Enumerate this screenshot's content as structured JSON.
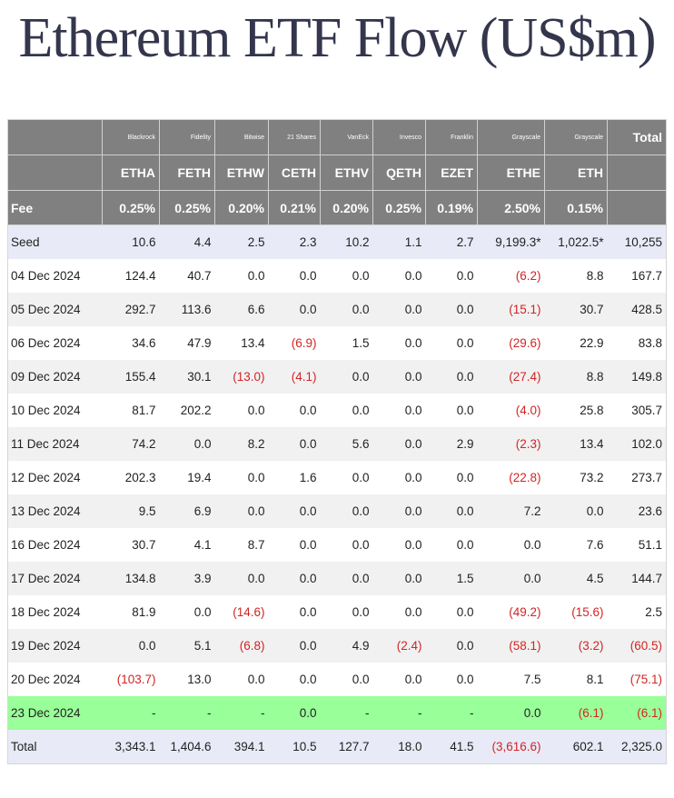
{
  "title": "Ethereum ETF Flow (US$m)",
  "header": {
    "issuers": [
      "",
      "Blackrock",
      "Fidelity",
      "Bitwise",
      "21 Shares",
      "VanEck",
      "Invesco",
      "Franklin",
      "Grayscale",
      "Grayscale",
      "Total"
    ],
    "tickers": [
      "",
      "ETHA",
      "FETH",
      "ETHW",
      "CETH",
      "ETHV",
      "QETH",
      "EZET",
      "ETHE",
      "ETH",
      ""
    ],
    "fees": [
      "Fee",
      "0.25%",
      "0.25%",
      "0.20%",
      "0.21%",
      "0.20%",
      "0.25%",
      "0.19%",
      "2.50%",
      "0.15%",
      ""
    ]
  },
  "rows": [
    {
      "style": "seed",
      "cells": [
        "Seed",
        "10.6",
        "4.4",
        "2.5",
        "2.3",
        "10.2",
        "1.1",
        "2.7",
        "9,199.3*",
        "1,022.5*",
        "10,255"
      ]
    },
    {
      "style": "odd",
      "cells": [
        "04 Dec 2024",
        "124.4",
        "40.7",
        "0.0",
        "0.0",
        "0.0",
        "0.0",
        "0.0",
        "(6.2)",
        "8.8",
        "167.7"
      ]
    },
    {
      "style": "even",
      "cells": [
        "05 Dec 2024",
        "292.7",
        "113.6",
        "6.6",
        "0.0",
        "0.0",
        "0.0",
        "0.0",
        "(15.1)",
        "30.7",
        "428.5"
      ]
    },
    {
      "style": "odd",
      "cells": [
        "06 Dec 2024",
        "34.6",
        "47.9",
        "13.4",
        "(6.9)",
        "1.5",
        "0.0",
        "0.0",
        "(29.6)",
        "22.9",
        "83.8"
      ]
    },
    {
      "style": "even",
      "cells": [
        "09 Dec 2024",
        "155.4",
        "30.1",
        "(13.0)",
        "(4.1)",
        "0.0",
        "0.0",
        "0.0",
        "(27.4)",
        "8.8",
        "149.8"
      ]
    },
    {
      "style": "odd",
      "cells": [
        "10 Dec 2024",
        "81.7",
        "202.2",
        "0.0",
        "0.0",
        "0.0",
        "0.0",
        "0.0",
        "(4.0)",
        "25.8",
        "305.7"
      ]
    },
    {
      "style": "even",
      "cells": [
        "11 Dec 2024",
        "74.2",
        "0.0",
        "8.2",
        "0.0",
        "5.6",
        "0.0",
        "2.9",
        "(2.3)",
        "13.4",
        "102.0"
      ]
    },
    {
      "style": "odd",
      "cells": [
        "12 Dec 2024",
        "202.3",
        "19.4",
        "0.0",
        "1.6",
        "0.0",
        "0.0",
        "0.0",
        "(22.8)",
        "73.2",
        "273.7"
      ]
    },
    {
      "style": "even",
      "cells": [
        "13 Dec 2024",
        "9.5",
        "6.9",
        "0.0",
        "0.0",
        "0.0",
        "0.0",
        "0.0",
        "7.2",
        "0.0",
        "23.6"
      ]
    },
    {
      "style": "odd",
      "cells": [
        "16 Dec 2024",
        "30.7",
        "4.1",
        "8.7",
        "0.0",
        "0.0",
        "0.0",
        "0.0",
        "0.0",
        "7.6",
        "51.1"
      ]
    },
    {
      "style": "even",
      "cells": [
        "17 Dec 2024",
        "134.8",
        "3.9",
        "0.0",
        "0.0",
        "0.0",
        "0.0",
        "1.5",
        "0.0",
        "4.5",
        "144.7"
      ]
    },
    {
      "style": "odd",
      "cells": [
        "18 Dec 2024",
        "81.9",
        "0.0",
        "(14.6)",
        "0.0",
        "0.0",
        "0.0",
        "0.0",
        "(49.2)",
        "(15.6)",
        "2.5"
      ]
    },
    {
      "style": "even",
      "cells": [
        "19 Dec 2024",
        "0.0",
        "5.1",
        "(6.8)",
        "0.0",
        "4.9",
        "(2.4)",
        "0.0",
        "(58.1)",
        "(3.2)",
        "(60.5)"
      ]
    },
    {
      "style": "odd",
      "cells": [
        "20 Dec 2024",
        "(103.7)",
        "13.0",
        "0.0",
        "0.0",
        "0.0",
        "0.0",
        "0.0",
        "7.5",
        "8.1",
        "(75.1)"
      ]
    },
    {
      "style": "green",
      "cells": [
        "23 Dec 2024",
        "-",
        "-",
        "-",
        "0.0",
        "-",
        "-",
        "-",
        "0.0",
        "(6.1)",
        "(6.1)"
      ]
    },
    {
      "style": "total",
      "cells": [
        "Total",
        "3,343.1",
        "1,404.6",
        "394.1",
        "10.5",
        "127.7",
        "18.0",
        "41.5",
        "(3,616.6)",
        "602.1",
        "2,325.0"
      ]
    }
  ],
  "colors": {
    "header_bg": "#808080",
    "negative": "#d32424",
    "highlight_row": "#99ff99",
    "title": "#33364c"
  }
}
